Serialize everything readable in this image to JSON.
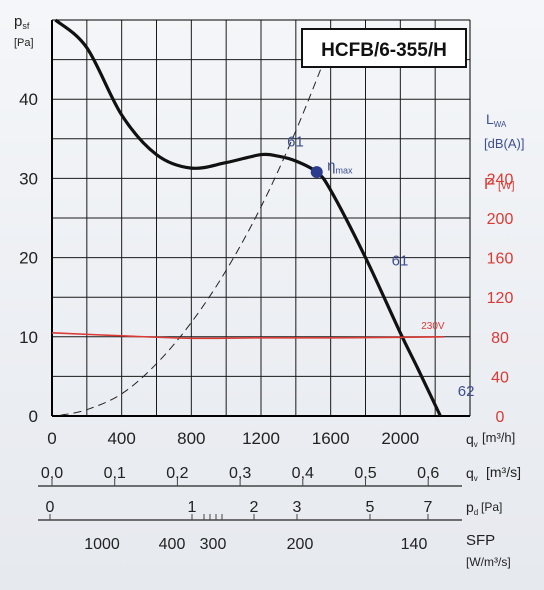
{
  "chart_data": {
    "type": "line",
    "model_label": "HCFB/6-355/H",
    "pressure_axis": {
      "symbol": "p",
      "sub": "sf",
      "unit": "[Pa]",
      "ticks": [
        0,
        10,
        20,
        30,
        40
      ],
      "ylim": [
        0,
        50
      ]
    },
    "flow_axis": {
      "ticks": [
        0,
        400,
        800,
        1200,
        1600,
        2000
      ],
      "xlim": [
        0,
        2400
      ],
      "symbol": "q",
      "sub": "v",
      "unit": "[m³/h]"
    },
    "flow_axis_m3s": {
      "ticks": [
        "0,0",
        "0,1",
        "0,2",
        "0,3",
        "0,4",
        "0,5",
        "0,6"
      ],
      "values": [
        0,
        0.1,
        0.2,
        0.3,
        0.4,
        0.5,
        0.6
      ],
      "symbol": "q",
      "sub": "v",
      "unit": "[m³/s]"
    },
    "pd_axis": {
      "ticks": [
        "0",
        "1",
        "2",
        "3",
        "5",
        "7"
      ],
      "values": [
        0,
        1,
        2,
        3,
        5,
        7
      ],
      "symbol": "p",
      "sub": "d",
      "unit": "[Pa]"
    },
    "sfp_axis": {
      "ticks": [
        "1000",
        "400",
        "300",
        "200",
        "140"
      ],
      "values": [
        1000,
        400,
        300,
        200,
        140
      ],
      "symbol": "SFP",
      "unit": "[W/m³/s]"
    },
    "lwa_axis": {
      "symbol": "L",
      "sub": "WA",
      "unit": "[dB(A)]"
    },
    "power_axis": {
      "symbol": "P",
      "unit": "[W]",
      "ticks": [
        0,
        40,
        80,
        120,
        160,
        200,
        240
      ],
      "ylim": [
        0,
        400
      ]
    },
    "series": [
      {
        "role": "pressure",
        "color": "#111111",
        "x": [
          20,
          200,
          400,
          600,
          800,
          1000,
          1200,
          1300,
          1400,
          1520,
          1600,
          1800,
          2000,
          2100,
          2230
        ],
        "y": [
          50,
          46.5,
          38,
          33,
          31.3,
          32,
          33,
          32.8,
          32.2,
          30.8,
          28.5,
          20,
          10.5,
          6,
          0
        ]
      },
      {
        "role": "system-curve",
        "color": "#222222",
        "x": [
          50,
          200,
          400,
          600,
          800,
          1000,
          1200,
          1400,
          1600
        ],
        "y": [
          0.1,
          0.8,
          2.8,
          6.6,
          11.8,
          18.4,
          26.4,
          36,
          47
        ]
      },
      {
        "role": "power",
        "name": "230V",
        "color": "#d93a34",
        "x": [
          0,
          400,
          800,
          1200,
          1600,
          2000,
          2250
        ],
        "y": [
          84,
          81,
          78.5,
          79,
          79,
          79.5,
          80
        ]
      }
    ],
    "annotations": [
      {
        "text": "61",
        "x": 1350,
        "y": 34,
        "color": "#3d4f8f"
      },
      {
        "text": "η",
        "sub": "max",
        "x": 1580,
        "y": 31,
        "color": "#3d4f8f"
      },
      {
        "text": "61",
        "x": 1950,
        "y": 19,
        "color": "#3d4f8f"
      },
      {
        "text": "62",
        "x": 2330,
        "y": 2.5,
        "color": "#3d4f8f"
      },
      {
        "text": "230V",
        "x": 2120,
        "y": 11,
        "color": "#d93a34"
      }
    ],
    "eta_max_point": {
      "x": 1520,
      "y": 30.8
    },
    "colors": {
      "pressure": "#111111",
      "power": "#d93a34",
      "lwa": "#3d4f8f",
      "marker": "#2b3c8e",
      "grid": "#1a1a1a"
    },
    "grid": true
  }
}
